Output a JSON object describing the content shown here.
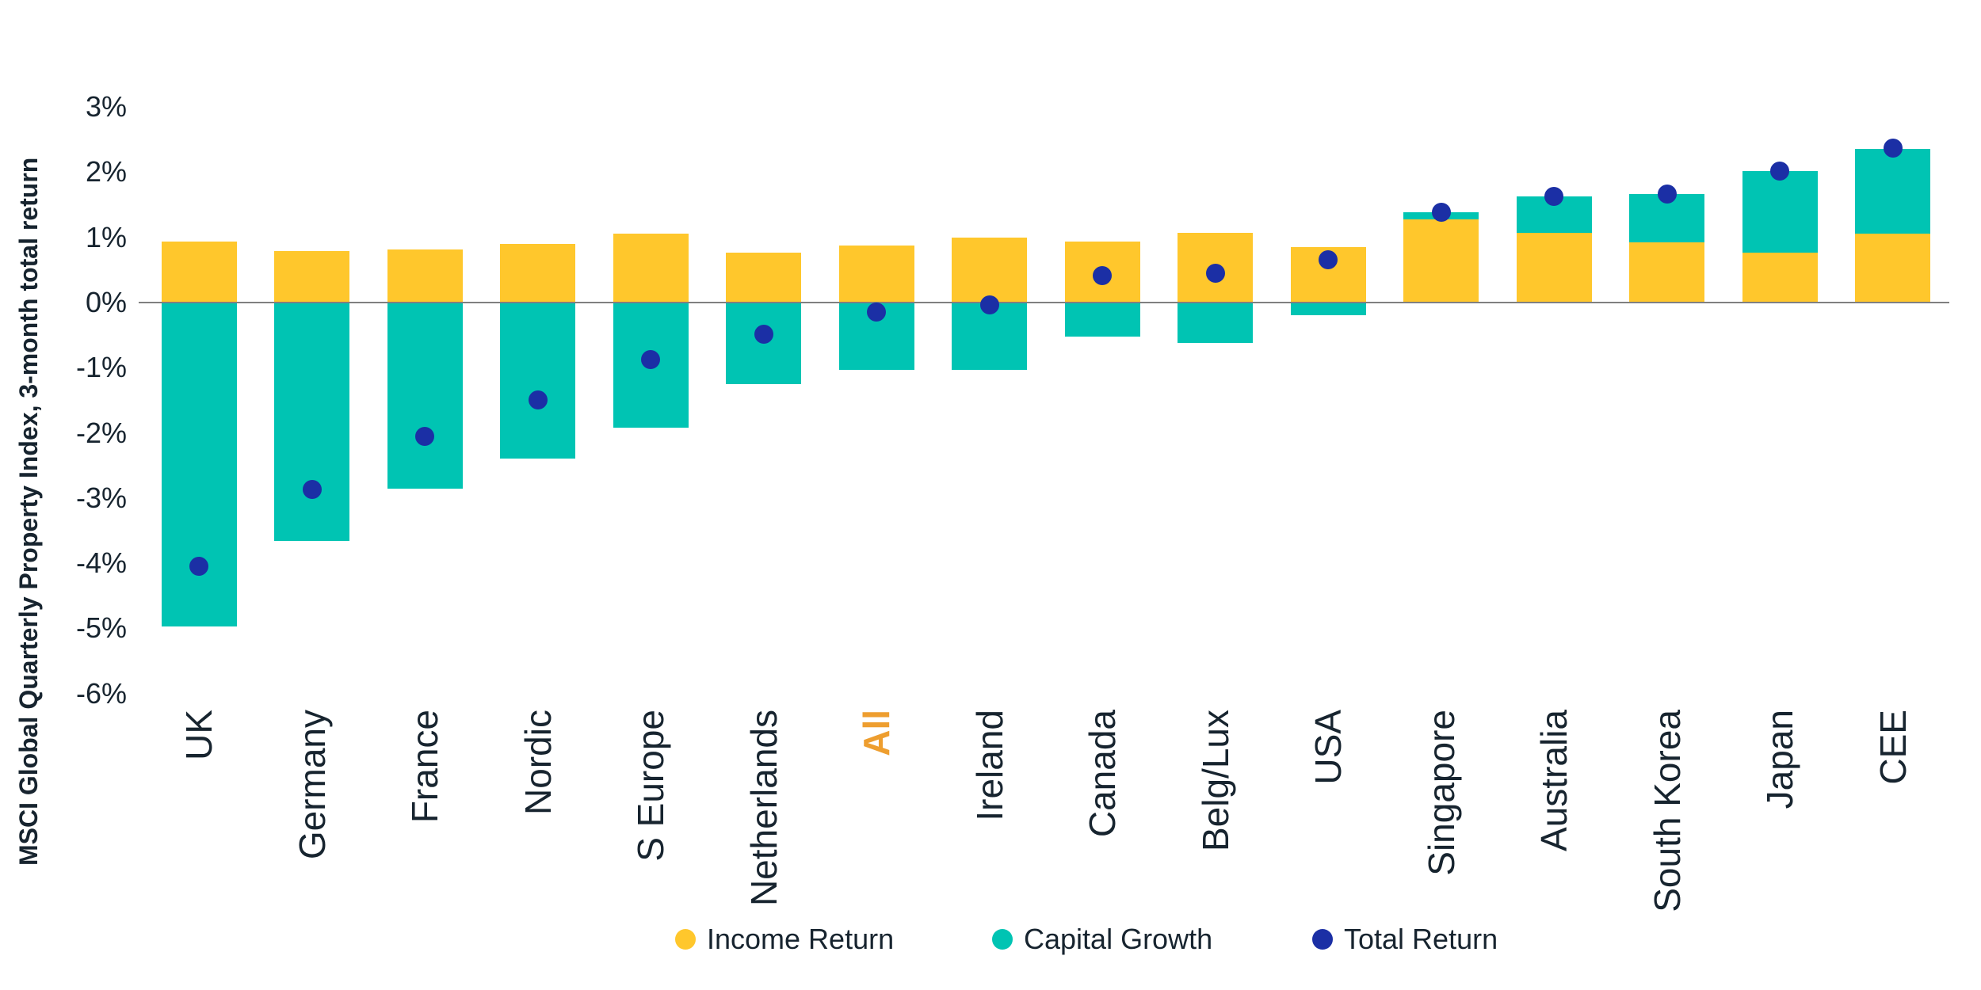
{
  "figure": {
    "background": "#FFFFFF"
  },
  "colors": {
    "text": "#17242F",
    "highlight_label": "#EE9E2F",
    "zero_line": "#808080",
    "income_return": "#FFC72C",
    "capital_growth": "#00C4B3",
    "total_return": "#1B2FA5"
  },
  "chart_data": {
    "type": "bar",
    "subtype": "stacked-bars-with-point-overlay",
    "title": "",
    "xlabel": "",
    "ylabel": "MSCI Global Quarterly Property Index, 3-month total return",
    "ylim": [
      -6,
      3
    ],
    "grid": false,
    "zero_line": true,
    "legend_position": "bottom",
    "yticks": [
      {
        "value": 3,
        "label": "3%"
      },
      {
        "value": 2,
        "label": "2%"
      },
      {
        "value": 1,
        "label": "1%"
      },
      {
        "value": 0,
        "label": "0%"
      },
      {
        "value": -1,
        "label": "-1%"
      },
      {
        "value": -2,
        "label": "-2%"
      },
      {
        "value": -3,
        "label": "-3%"
      },
      {
        "value": -4,
        "label": "-4%"
      },
      {
        "value": -5,
        "label": "-5%"
      },
      {
        "value": -6,
        "label": "-6%"
      }
    ],
    "categories": [
      "UK",
      "Germany",
      "France",
      "Nordic",
      "S Europe",
      "Netherlands",
      "All",
      "Ireland",
      "Canada",
      "Belg/Lux",
      "USA",
      "Singapore",
      "Australia",
      "South Korea",
      "Japan",
      "CEE"
    ],
    "highlighted_category": "All",
    "series": [
      {
        "name": "Income Return",
        "render": "bar",
        "color": "#FFC72C",
        "values": [
          0.93,
          0.79,
          0.81,
          0.9,
          1.05,
          0.77,
          0.87,
          1.0,
          0.94,
          1.07,
          0.85,
          1.27,
          1.07,
          0.92,
          0.77,
          1.06
        ]
      },
      {
        "name": "Capital Growth",
        "render": "bar",
        "color": "#00C4B3",
        "values": [
          -4.97,
          -3.66,
          -2.86,
          -2.4,
          -1.92,
          -1.25,
          -1.03,
          -1.04,
          -0.52,
          -0.62,
          -0.2,
          0.12,
          0.56,
          0.74,
          1.24,
          1.3
        ]
      },
      {
        "name": "Total Return",
        "render": "point",
        "color": "#1B2FA5",
        "values": [
          -4.05,
          -2.87,
          -2.06,
          -1.5,
          -0.87,
          -0.49,
          -0.15,
          -0.04,
          0.41,
          0.45,
          0.66,
          1.38,
          1.63,
          1.66,
          2.02,
          2.37
        ]
      }
    ]
  }
}
